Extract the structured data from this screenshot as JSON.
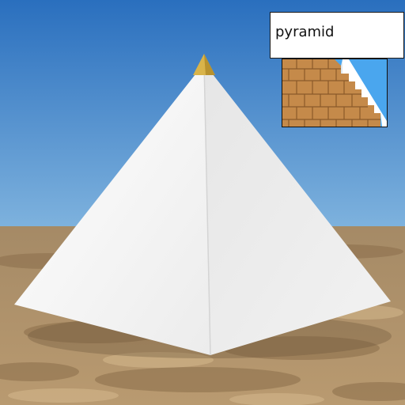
{
  "label": {
    "text": "pyramid"
  },
  "scene": {
    "subject": "pyramid-illustration",
    "colors": {
      "sky_top": "#2a6fbe",
      "sky_bottom": "#7fb3de",
      "sand": "#b0936b",
      "sand_shadow": "#8b6e4a",
      "pyramid_light": "#f4f4f4",
      "pyramid_shade": "#dcdcdc",
      "capstone": "#d9b44a"
    }
  },
  "thumbnail": {
    "subject": "stepped-pyramid-blocks-icon",
    "colors": {
      "sky": "#4aa6ee",
      "blocks": "#c58a4a",
      "block_lines": "#8a5a2a",
      "casing": "#ffffff"
    }
  }
}
